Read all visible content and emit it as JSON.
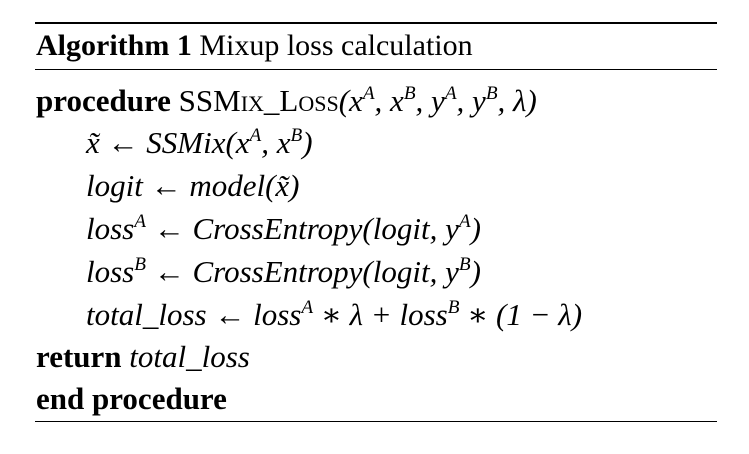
{
  "caption": {
    "label": "Algorithm 1",
    "title": "Mixup loss calculation"
  },
  "lines": {
    "procedure_kw": "procedure",
    "procedure_name": "SSMix_Loss",
    "procedure_args": "(x^A, x^B, y^A, y^B, λ)",
    "l1": "x̃ ← SSMix(x^A, x^B)",
    "l2": "logit ← model(x̃)",
    "l3": "loss^A ← CrossEntropy(logit, y^A)",
    "l4": "loss^B ← CrossEntropy(logit, y^B)",
    "l5": "total_loss ← loss^A ∗ λ + loss^B ∗ (1 − λ)",
    "return_kw": "return",
    "return_val": "total_loss",
    "end_kw": "end procedure"
  }
}
